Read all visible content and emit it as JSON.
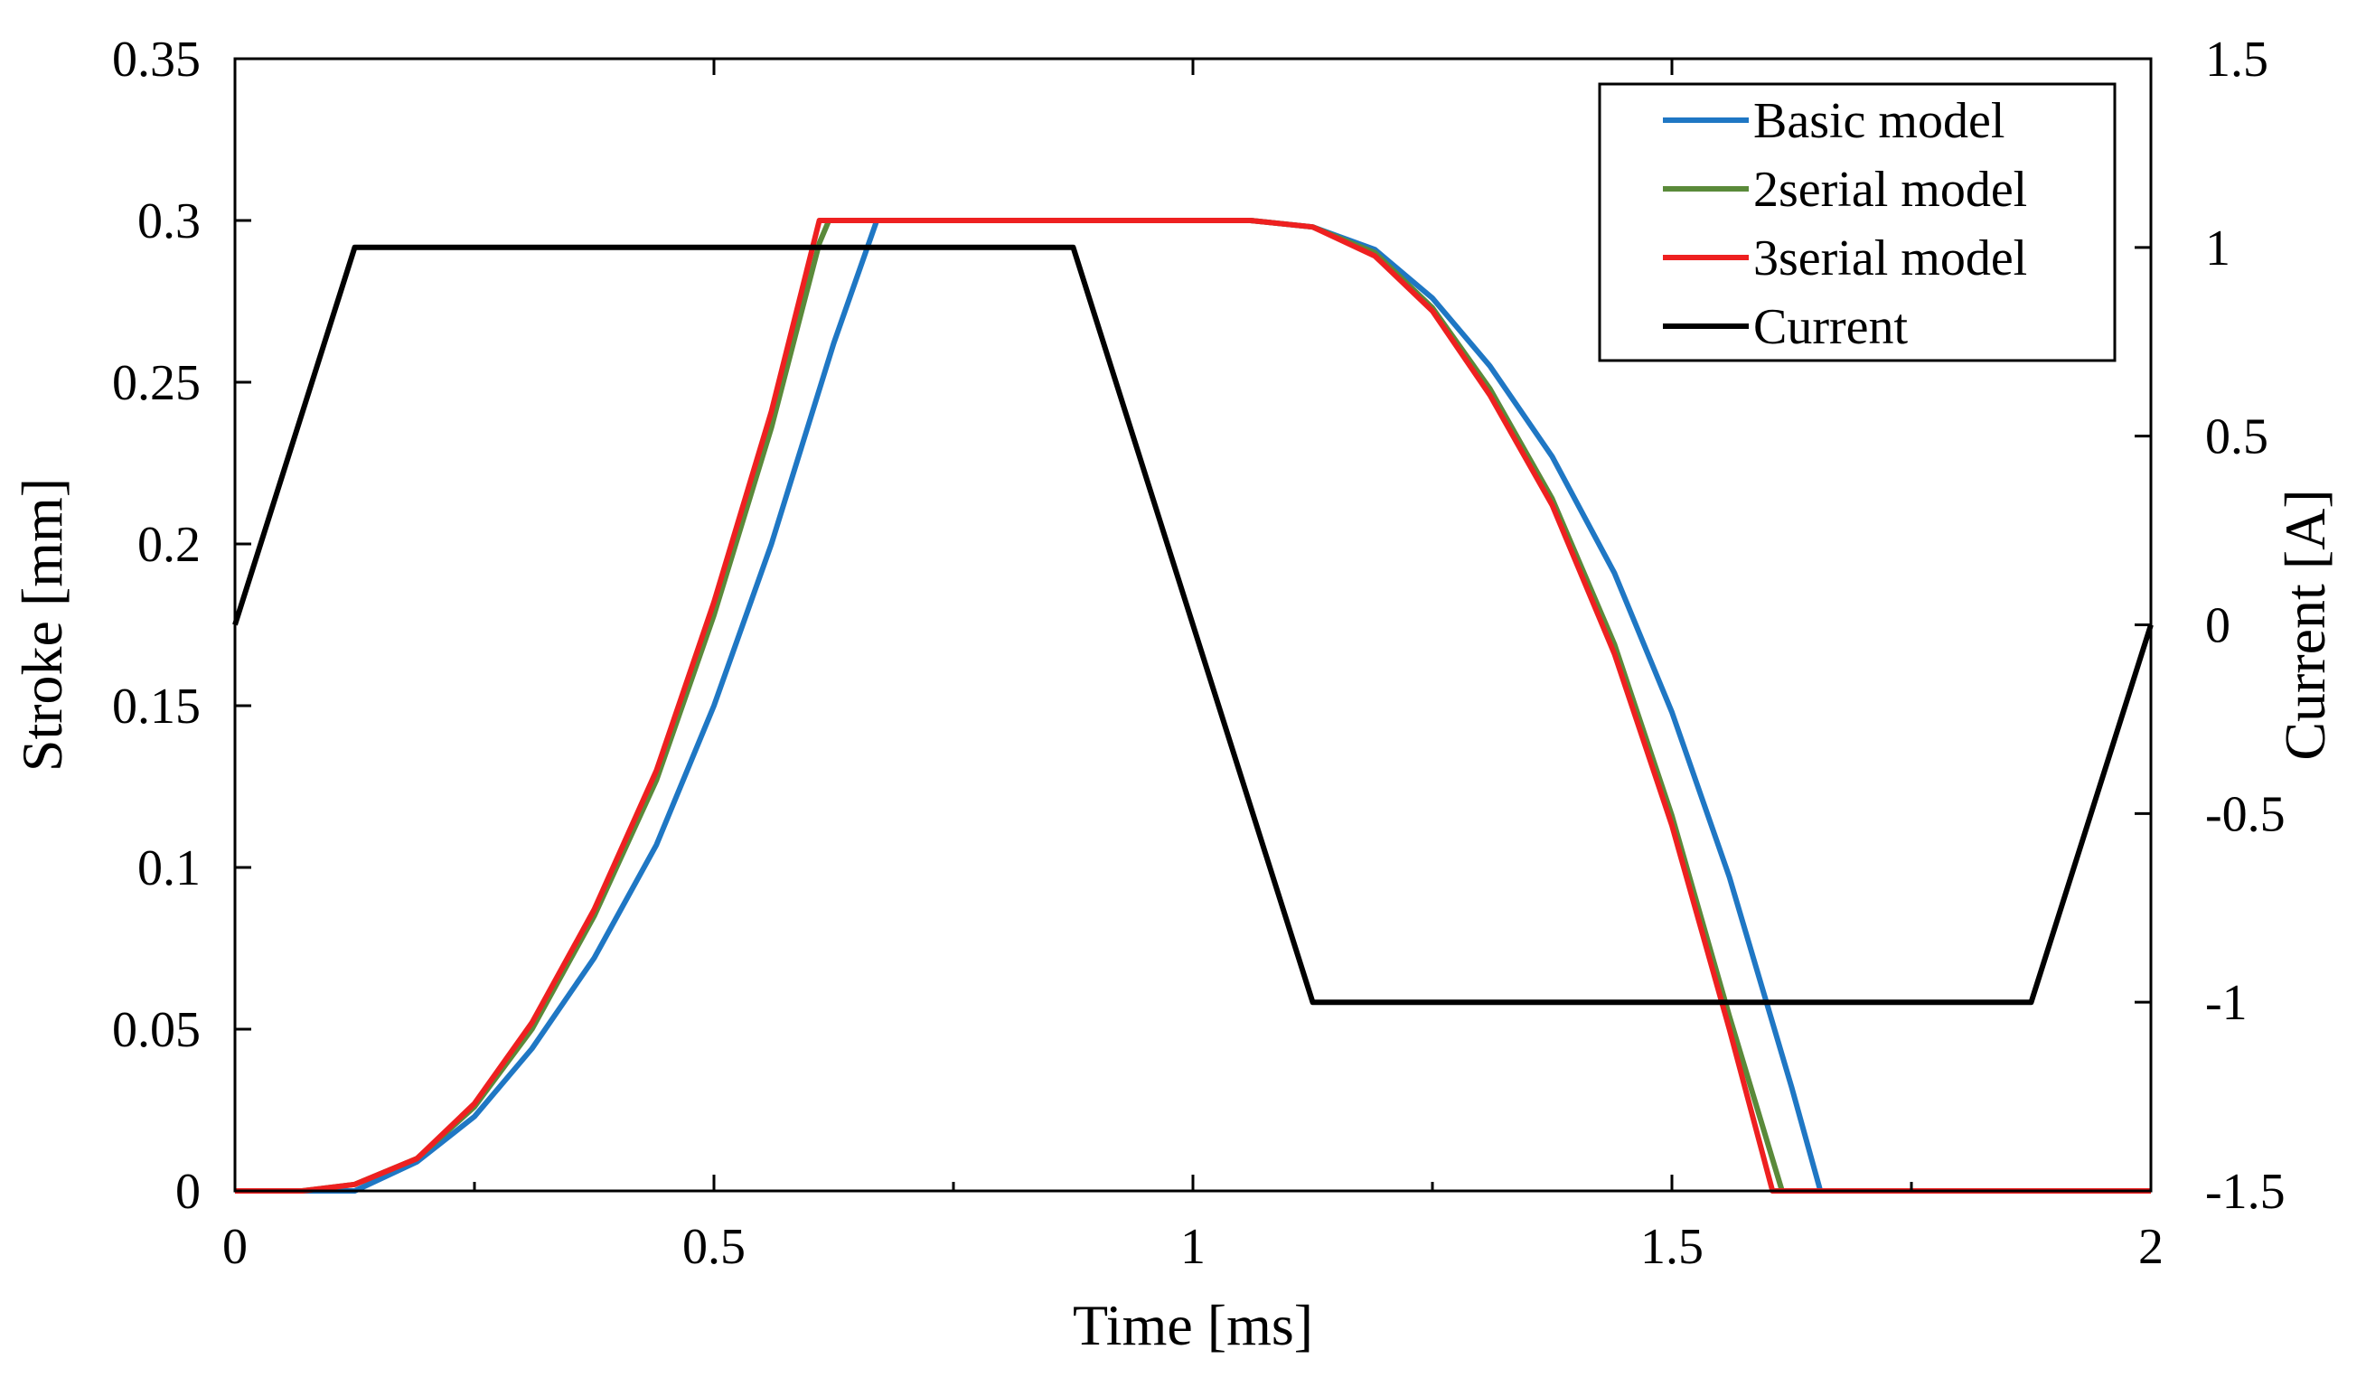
{
  "chart_data": {
    "type": "line",
    "title": "",
    "xlabel": "Time [ms]",
    "ylabel_left": "Stroke [mm]",
    "ylabel_right": "Current [A]",
    "xlim": [
      0,
      2
    ],
    "ylim_left": [
      0,
      0.35
    ],
    "ylim_right": [
      -1.5,
      1.5
    ],
    "grid": false,
    "legend_position": "top-right",
    "x_ticks": [
      {
        "value": 0,
        "label": "0"
      },
      {
        "value": 0.5,
        "label": "0.5"
      },
      {
        "value": 1,
        "label": "1"
      },
      {
        "value": 1.5,
        "label": "1.5"
      },
      {
        "value": 2,
        "label": "2"
      }
    ],
    "y_left_ticks": [
      {
        "value": 0,
        "label": "0"
      },
      {
        "value": 0.05,
        "label": "0.05"
      },
      {
        "value": 0.1,
        "label": "0.1"
      },
      {
        "value": 0.15,
        "label": "0.15"
      },
      {
        "value": 0.2,
        "label": "0.2"
      },
      {
        "value": 0.25,
        "label": "0.25"
      },
      {
        "value": 0.3,
        "label": "0.3"
      },
      {
        "value": 0.35,
        "label": "0.35"
      }
    ],
    "y_right_ticks": [
      {
        "value": -1.5,
        "label": "-1.5"
      },
      {
        "value": -1,
        "label": "-1"
      },
      {
        "value": -0.5,
        "label": "-0.5"
      },
      {
        "value": 0,
        "label": "0"
      },
      {
        "value": 0.5,
        "label": "0.5"
      },
      {
        "value": 1,
        "label": "1"
      },
      {
        "value": 1.5,
        "label": "1.5"
      }
    ],
    "series": [
      {
        "name": "Basic model",
        "color": "#1f77c4",
        "axis": "left",
        "x": [
          0,
          0.125,
          0.19,
          0.25,
          0.31,
          0.375,
          0.44,
          0.5,
          0.56,
          0.625,
          0.67,
          1.06,
          1.125,
          1.19,
          1.25,
          1.31,
          1.375,
          1.44,
          1.5,
          1.56,
          1.625,
          1.655,
          2
        ],
        "y": [
          0,
          0,
          0.009,
          0.023,
          0.044,
          0.072,
          0.107,
          0.15,
          0.2,
          0.262,
          0.3,
          0.3,
          0.298,
          0.291,
          0.276,
          0.255,
          0.227,
          0.191,
          0.148,
          0.097,
          0.032,
          0,
          0
        ]
      },
      {
        "name": "2serial model",
        "color": "#5a8a3a",
        "axis": "left",
        "x": [
          0,
          0.07,
          0.125,
          0.19,
          0.25,
          0.31,
          0.375,
          0.44,
          0.5,
          0.56,
          0.61,
          0.62,
          1.06,
          1.125,
          1.19,
          1.25,
          1.31,
          1.375,
          1.44,
          1.5,
          1.56,
          1.615,
          2
        ],
        "y": [
          0,
          0,
          0.002,
          0.01,
          0.026,
          0.05,
          0.085,
          0.127,
          0.178,
          0.236,
          0.293,
          0.3,
          0.3,
          0.298,
          0.29,
          0.273,
          0.248,
          0.214,
          0.169,
          0.116,
          0.054,
          0,
          0
        ]
      },
      {
        "name": "3serial model",
        "color": "#ee2020",
        "axis": "left",
        "x": [
          0,
          0.07,
          0.125,
          0.19,
          0.25,
          0.31,
          0.375,
          0.44,
          0.5,
          0.56,
          0.61,
          1.06,
          1.125,
          1.19,
          1.25,
          1.31,
          1.375,
          1.44,
          1.5,
          1.56,
          1.605,
          2
        ],
        "y": [
          0,
          0,
          0.002,
          0.01,
          0.027,
          0.052,
          0.087,
          0.13,
          0.182,
          0.241,
          0.3,
          0.3,
          0.298,
          0.289,
          0.272,
          0.246,
          0.212,
          0.166,
          0.113,
          0.05,
          0,
          0
        ]
      },
      {
        "name": "Current",
        "color": "#000000",
        "axis": "right",
        "x": [
          0,
          0.125,
          0.875,
          1.125,
          1.875,
          2
        ],
        "y": [
          0,
          1,
          1,
          -1,
          -1,
          0
        ]
      }
    ]
  }
}
